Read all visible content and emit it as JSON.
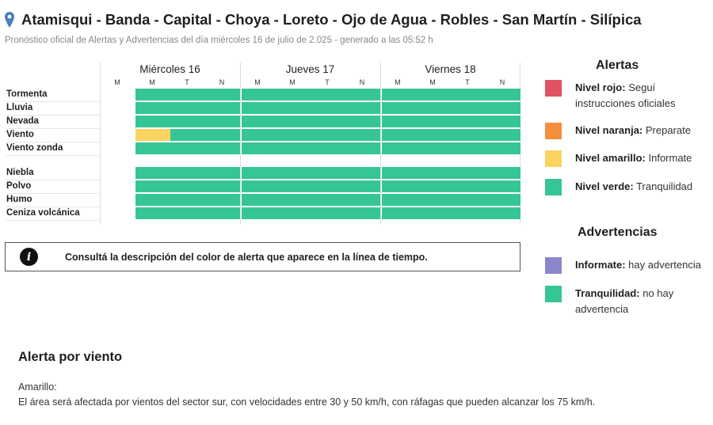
{
  "header": {
    "title": "Atamisqui - Banda - Capital - Choya - Loreto - Ojo de Agua - Robles - San Martín - Silípica",
    "subtitle": "Pronóstico oficial de Alertas y Advertencias del día miércoles 16 de julio de 2.025 - generado a las 05:52 h",
    "icon": "map-pin-icon"
  },
  "timeline": {
    "days": [
      {
        "label": "Miércoles 16",
        "slots": [
          "M",
          "M",
          "T",
          "N"
        ]
      },
      {
        "label": "Jueves 17",
        "slots": [
          "M",
          "M",
          "T",
          "N"
        ]
      },
      {
        "label": "Viernes 18",
        "slots": [
          "M",
          "M",
          "T",
          "N"
        ]
      }
    ],
    "alert_rows": [
      {
        "label": "Tormenta",
        "levels": [
          null,
          "verde",
          "verde",
          "verde",
          "verde",
          "verde",
          "verde",
          "verde",
          "verde",
          "verde",
          "verde",
          "verde"
        ]
      },
      {
        "label": "Lluvia",
        "levels": [
          null,
          "verde",
          "verde",
          "verde",
          "verde",
          "verde",
          "verde",
          "verde",
          "verde",
          "verde",
          "verde",
          "verde"
        ]
      },
      {
        "label": "Nevada",
        "levels": [
          null,
          "verde",
          "verde",
          "verde",
          "verde",
          "verde",
          "verde",
          "verde",
          "verde",
          "verde",
          "verde",
          "verde"
        ]
      },
      {
        "label": "Viento",
        "levels": [
          null,
          "amarillo",
          "verde",
          "verde",
          "verde",
          "verde",
          "verde",
          "verde",
          "verde",
          "verde",
          "verde",
          "verde"
        ]
      },
      {
        "label": "Viento zonda",
        "levels": [
          null,
          "verde",
          "verde",
          "verde",
          "verde",
          "verde",
          "verde",
          "verde",
          "verde",
          "verde",
          "verde",
          "verde"
        ]
      }
    ],
    "warning_rows": [
      {
        "label": "Niebla",
        "levels": [
          null,
          "verde",
          "verde",
          "verde",
          "verde",
          "verde",
          "verde",
          "verde",
          "verde",
          "verde",
          "verde",
          "verde"
        ]
      },
      {
        "label": "Polvo",
        "levels": [
          null,
          "verde",
          "verde",
          "verde",
          "verde",
          "verde",
          "verde",
          "verde",
          "verde",
          "verde",
          "verde",
          "verde"
        ]
      },
      {
        "label": "Humo",
        "levels": [
          null,
          "verde",
          "verde",
          "verde",
          "verde",
          "verde",
          "verde",
          "verde",
          "verde",
          "verde",
          "verde",
          "verde"
        ]
      },
      {
        "label": "Ceniza volcánica",
        "levels": [
          null,
          "verde",
          "verde",
          "verde",
          "verde",
          "verde",
          "verde",
          "verde",
          "verde",
          "verde",
          "verde",
          "verde"
        ]
      }
    ]
  },
  "colors": {
    "rojo": "#e05262",
    "naranja": "#f28f3b",
    "amarillo": "#fad360",
    "verde": "#35c694",
    "violeta": "#8b87cc"
  },
  "info_box": {
    "icon": "info-icon",
    "text": "Consultá la descripción del color de alerta que aparece en la línea de tiempo."
  },
  "legend": {
    "alerts_title": "Alertas",
    "alerts": [
      {
        "color": "rojo",
        "name": "Nivel rojo:",
        "desc": " Seguí instrucciones oficiales"
      },
      {
        "color": "naranja",
        "name": "Nivel naranja:",
        "desc": " Preparate"
      },
      {
        "color": "amarillo",
        "name": "Nivel amarillo:",
        "desc": " Informate"
      },
      {
        "color": "verde",
        "name": "Nivel verde:",
        "desc": " Tranquilidad"
      }
    ],
    "warnings_title": "Advertencias",
    "warnings": [
      {
        "color": "violeta",
        "name": "Informate:",
        "desc": " hay advertencia"
      },
      {
        "color": "verde",
        "name": "Tranquilidad:",
        "desc": " no hay advertencia"
      }
    ]
  },
  "alert_detail": {
    "title": "Alerta por viento",
    "level": "Amarillo:",
    "description": "El área será afectada por vientos del sector sur, con velocidades entre 30 y 50 km/h, con ráfagas que pueden alcanzar los 75 km/h."
  }
}
